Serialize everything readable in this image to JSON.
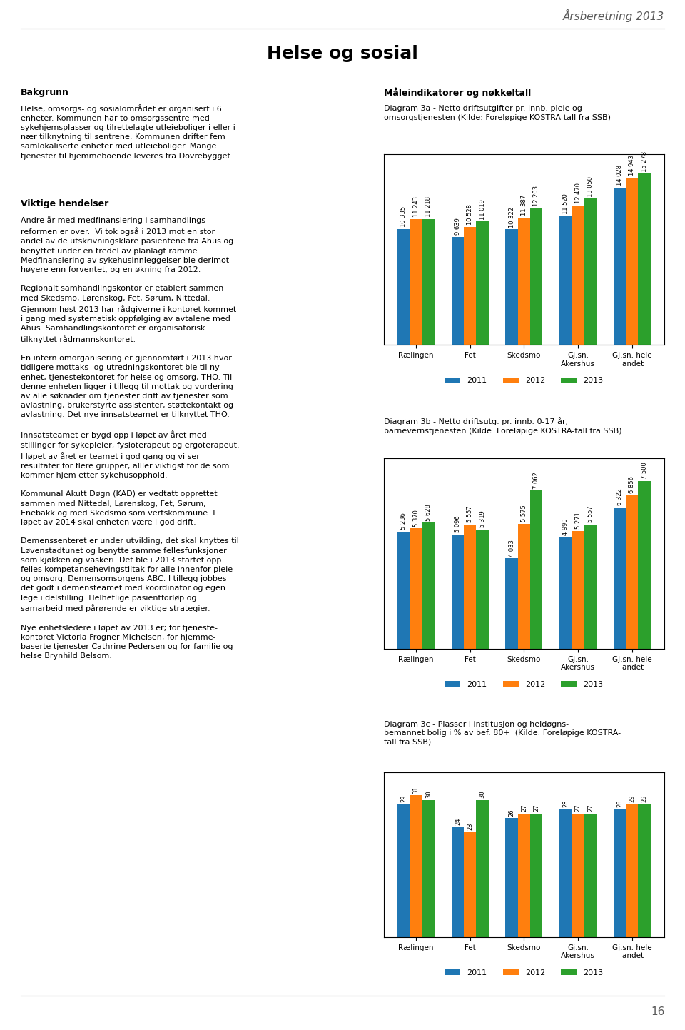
{
  "header": "Årsberetning 2013",
  "title": "Helse og sosial",
  "page_number": "16",
  "sections": [
    {
      "heading": "Bakgrunn",
      "text": "Helse, omsorgs- og sosialområdet er organisert i 6\nenheter. Kommunen har to omsorgssentre med\nsykehjemsplasser og tilrettelagte utleieboliger i eller i\nnær tilknytning til sentrene. Kommunen drifter fem\nsamlokaliserte enheter med utleieboliger. Mange\ntjenester til hjemmeboende leveres fra Dovrebygget."
    },
    {
      "heading": "Viktige hendelser",
      "text": "Andre år med medfinansiering i samhandlings-\nreformen er over.  Vi tok også i 2013 mot en stor\nandel av de utskrivningsklare pasientene fra Ahus og\nbenyttet under en tredel av planlagt ramme\nMedfinansiering av sykehusinnleggelser ble derimot\nhøyere enn forventet, og en økning fra 2012.\n\nRegionalt samhandlingskontor er etablert sammen\nmed Skedsmo, Lørenskog, Fet, Sørum, Nittedal.\nGjennom høst 2013 har rådgiverne i kontoret kommet\ni gang med systematisk oppfølging av avtalene med\nAhus. Samhandlingskontoret er organisatorisk\ntilknyttet rådmannskontoret.\n\nEn intern omorganisering er gjennomført i 2013 hvor\ntidligere mottaks- og utredningskontoret ble til ny\nenhet, tjenestekontoret for helse og omsorg, THO. Til\ndenne enheten ligger i tillegg til mottak og vurdering\nav alle søknader om tjenester drift av tjenester som\navlastning, brukerstyrte assistenter, støttekontakt og\navlastning. Det nye innsatsteamet er tilknyttet THO.\n\nInnsatsteamet er bygd opp i løpet av året med\nstillinger for sykepleier, fysioterapeut og ergoterapeut.\nI løpet av året er teamet i god gang og vi ser\nresultater for flere grupper, alller viktigst for de som\nkommer hjem etter sykehusopphold.\n\nKommunal Akutt Døgn (KAD) er vedtatt opprettet\nsammen med Nittedal, Lørenskog, Fet, Sørum,\nEnebakk og med Skedsmo som vertskommune. I\nløpet av 2014 skal enheten være i god drift.\n\nDemenssenteret er under utvikling, det skal knyttes til\nLøvenstadtunet og benytte samme fellesfunksjoner\nsom kjøkken og vaskeri. Det ble i 2013 startet opp\nfelles kompetansehevingstiltak for alle innenfor pleie\nog omsorg; Demensomsorgens ABC. I tillegg jobbes\ndet godt i demensteamet med koordinator og egen\nlege i delstilling. Helhetlige pasientforløp og\nsamarbeid med pårørende er viktige strategier.\n\nNye enhetsledere i løpet av 2013 er; for tjeneste-\nkontoret Victoria Frogner Michelsen, for hjemme-\nbaserte tjenester Cathrine Pedersen og for familie og\nhelse Brynhild Belsom."
    }
  ],
  "charts_heading": "Måleindikatorer og nøkkeltall",
  "chart_data": [
    {
      "type": "bar",
      "title": "Diagram 3a - Netto driftsutgifter pr. innb. pleie og\nomsorgstjenesten (Kilde: Foreløpige KOSTRA-tall fra SSB)",
      "categories": [
        "Rælingen",
        "Fet",
        "Skedsmo",
        "Gj.sn.\nAkershus",
        "Gj.sn. hele\nlandet"
      ],
      "series": [
        {
          "name": "2011",
          "values": [
            10335,
            9639,
            10322,
            11520,
            14028
          ],
          "value_labels": [
            "10 335",
            "9 639",
            "10 322",
            "11 520",
            "14 028"
          ]
        },
        {
          "name": "2012",
          "values": [
            11243,
            10528,
            11387,
            12470,
            14943
          ],
          "value_labels": [
            "11 243",
            "10 528",
            "11 387",
            "12 470",
            "14 943"
          ]
        },
        {
          "name": "2013",
          "values": [
            11218,
            11019,
            12203,
            13050,
            15278
          ],
          "value_labels": [
            "11 218",
            "11 019",
            "12 203",
            "13 050",
            "15 278"
          ]
        }
      ],
      "ylim": [
        0,
        17000
      ],
      "data_labels": true,
      "tick_labels": "x",
      "legend": "lower center"
    },
    {
      "type": "bar",
      "title": "Diagram 3b - Netto driftsutg. pr. innb. 0-17 år,\nbarnevernstjenesten (Kilde: Foreløpige KOSTRA-tall fra SSB)",
      "categories": [
        "Rælingen",
        "Fet",
        "Skedsmo",
        "Gj.sn.\nAkershus",
        "Gj.sn. hele\nlandet"
      ],
      "series": [
        {
          "name": "2011",
          "values": [
            5236,
            5096,
            4033,
            4990,
            6322
          ],
          "value_labels": [
            "5 236",
            "5 096",
            "4 033",
            "4 990",
            "6 322"
          ]
        },
        {
          "name": "2012",
          "values": [
            5370,
            5557,
            5575,
            5271,
            6856
          ],
          "value_labels": [
            "5 370",
            "5 557",
            "5 575",
            "5 271",
            "6 856"
          ]
        },
        {
          "name": "2013",
          "values": [
            5628,
            5319,
            7062,
            5557,
            7500
          ],
          "value_labels": [
            "5 628",
            "5 319",
            "7 062",
            "5 557",
            "7 500"
          ]
        }
      ],
      "ylim": [
        0,
        8500
      ],
      "data_labels": true,
      "tick_labels": "x",
      "legend": "lower center"
    },
    {
      "type": "bar",
      "title": "Diagram 3c - Plasser i institusjon og heldøgns-\nbemannet bolig i % av bef. 80+  (Kilde: Foreløpige KOSTRA-\ntall fra SSB)",
      "categories": [
        "Rælingen",
        "Fet",
        "Skedsmo",
        "Gj.sn.\nAkershus",
        "Gj.sn. hele\nlandet"
      ],
      "series": [
        {
          "name": "2011",
          "values": [
            29,
            24,
            26,
            28,
            28
          ]
        },
        {
          "name": "2012",
          "values": [
            31,
            23,
            27,
            27,
            29
          ]
        },
        {
          "name": "2013",
          "values": [
            30,
            30,
            27,
            27,
            29
          ]
        }
      ],
      "ylim": [
        0,
        36
      ],
      "data_labels": true,
      "tick_labels": "x",
      "legend": "lower center"
    }
  ]
}
